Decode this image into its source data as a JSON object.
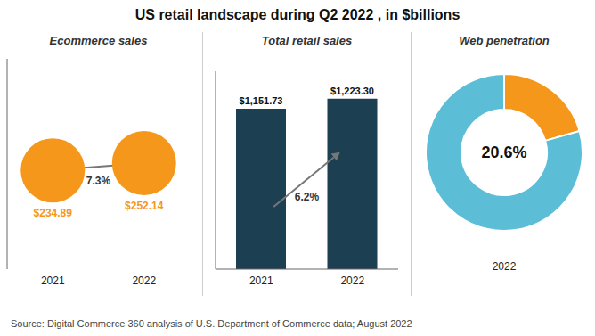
{
  "title": "US retail landscape during Q2 2022 , in $billions",
  "source": "Source: Digital Commerce 360 analysis of U.S. Department of Commerce data; August 2022",
  "chart_data": [
    {
      "type": "scatter",
      "title": "Ecommerce sales",
      "categories": [
        "2021",
        "2022"
      ],
      "values": [
        234.89,
        252.14
      ],
      "value_labels": [
        "$234.89",
        "$252.14"
      ],
      "data_labels": true,
      "annotation": "7.3%",
      "color": "#f5971a",
      "marker": "circle",
      "ylim": [
        0,
        500
      ],
      "tick_labels": "x"
    },
    {
      "type": "bar",
      "title": "Total retail sales",
      "categories": [
        "2021",
        "2022"
      ],
      "values": [
        1151.73,
        1223.3
      ],
      "value_labels": [
        "$1,151.73",
        "$1,223.30"
      ],
      "data_labels": true,
      "annotation": "6.2%",
      "color": "#1d3f52",
      "ylim": [
        0,
        1420
      ],
      "tick_labels": "x"
    },
    {
      "type": "pie",
      "title": "Web penetration",
      "values": [
        20.6,
        79.4
      ],
      "colors": [
        "#f5971a",
        "#5bbdd6"
      ],
      "annotation": "20.6%",
      "xlabel": "2022"
    }
  ]
}
